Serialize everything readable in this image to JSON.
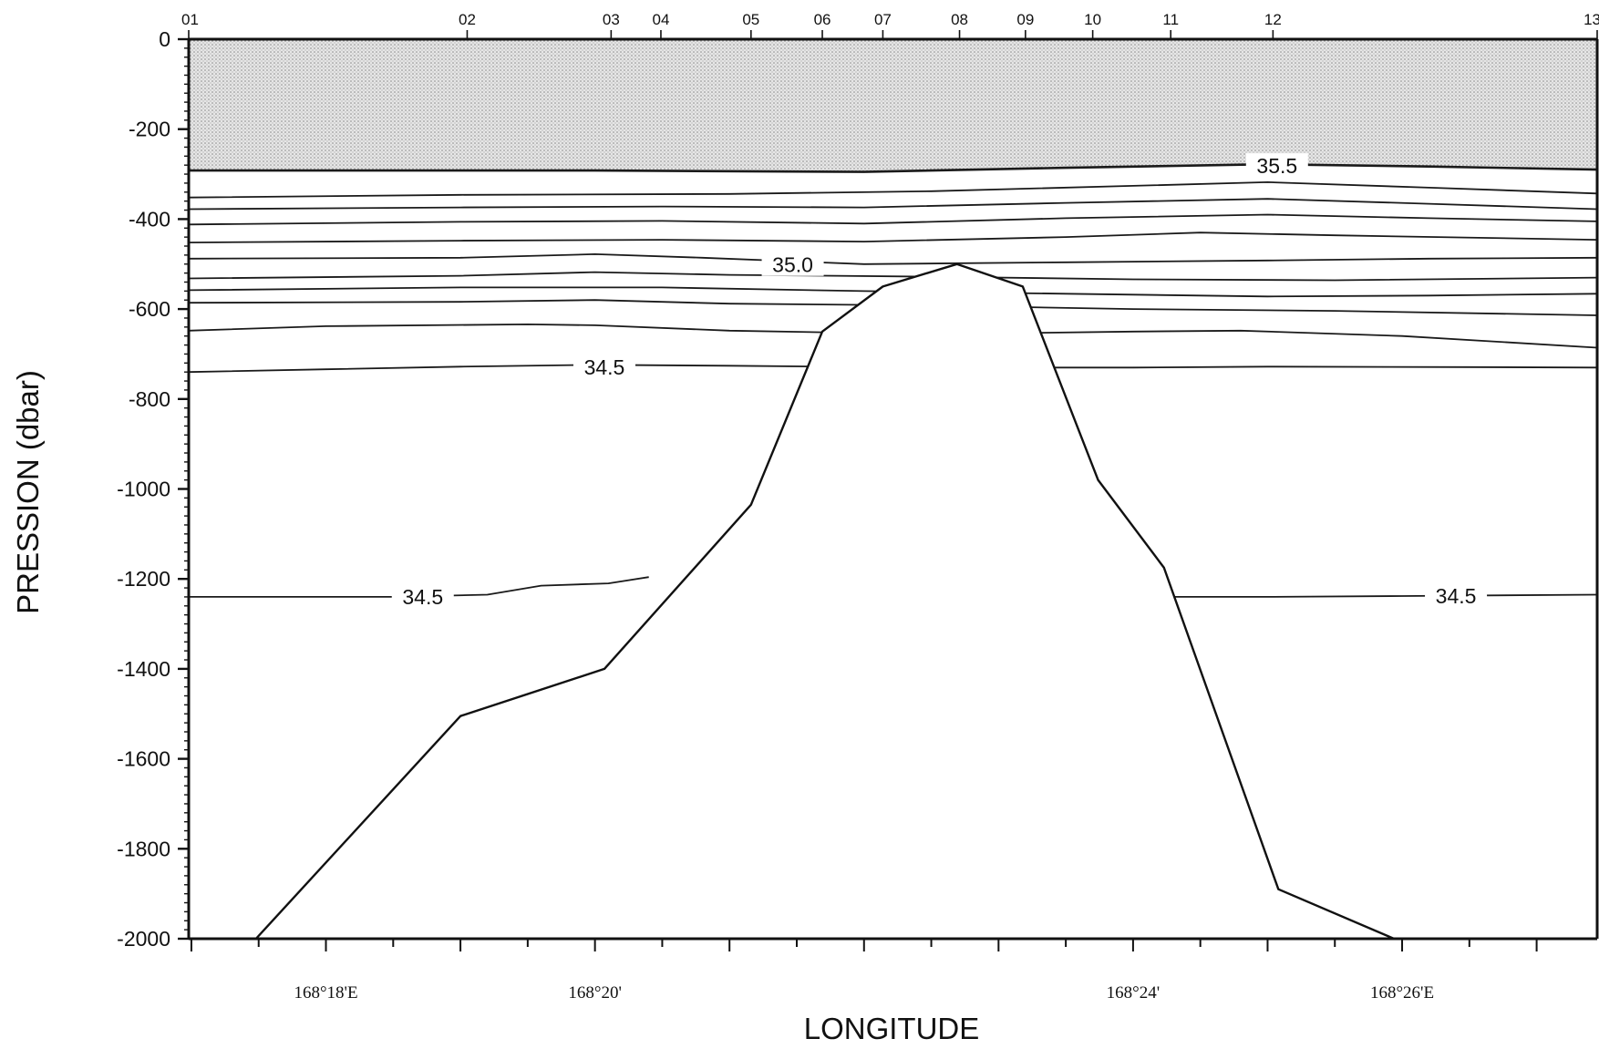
{
  "chart_data": {
    "type": "contour",
    "title": "",
    "xlabel": "LONGITUDE",
    "ylabel": "PRESSION (dbar)",
    "ylim": [
      -2000,
      0
    ],
    "y_ticks": [
      0,
      -200,
      -400,
      -600,
      -800,
      -1000,
      -1200,
      -1400,
      -1600,
      -1800,
      -2000
    ],
    "y_tick_labels": [
      "0",
      "-200",
      "-400",
      "-600",
      "-800",
      "-1000",
      "-1200",
      "-1400",
      "-1600",
      "-1800",
      "-2000"
    ],
    "x_unit": "arc-minutes east of 168°E",
    "xlim": [
      16.98,
      27.45
    ],
    "x_tick_labels": [
      {
        "x": 18,
        "label": "168°18'E"
      },
      {
        "x": 20,
        "label": "168°20'"
      },
      {
        "x": 24,
        "label": "168°24'"
      },
      {
        "x": 26,
        "label": "168°26'E"
      }
    ],
    "stations": [
      {
        "label": "01",
        "x": 16.98
      },
      {
        "label": "02",
        "x": 19.05
      },
      {
        "label": "03",
        "x": 20.12
      },
      {
        "label": "04",
        "x": 20.49
      },
      {
        "label": "05",
        "x": 21.16
      },
      {
        "label": "06",
        "x": 21.69
      },
      {
        "label": "07",
        "x": 22.14
      },
      {
        "label": "08",
        "x": 22.71
      },
      {
        "label": "09",
        "x": 23.2
      },
      {
        "label": "10",
        "x": 23.7
      },
      {
        "label": "11",
        "x": 24.28
      },
      {
        "label": "12",
        "x": 25.04
      },
      {
        "label": "13",
        "x": 27.45
      }
    ],
    "bottom_profile": [
      {
        "x": 17.48,
        "y": -2000
      },
      {
        "x": 19.0,
        "y": -1505
      },
      {
        "x": 20.07,
        "y": -1400
      },
      {
        "x": 21.16,
        "y": -1035
      },
      {
        "x": 21.69,
        "y": -650
      },
      {
        "x": 22.14,
        "y": -550
      },
      {
        "x": 22.69,
        "y": -500
      },
      {
        "x": 23.18,
        "y": -550
      },
      {
        "x": 23.74,
        "y": -980
      },
      {
        "x": 24.23,
        "y": -1175
      },
      {
        "x": 25.08,
        "y": -1890
      },
      {
        "x": 25.94,
        "y": -2000
      }
    ],
    "shaded_layer": {
      "description_level": "salinity above 35.5",
      "top": 0,
      "bottom_left": -292,
      "bottom_mid": -278,
      "bottom_right": -290
    },
    "contour_labels": [
      {
        "text": "35.5",
        "x": 25.07,
        "y": -282
      },
      {
        "text": "35.0",
        "x": 21.47,
        "y": -502
      },
      {
        "text": "34.5",
        "x": 20.07,
        "y": -729
      },
      {
        "text": "34.5",
        "x": 18.72,
        "y": -1240
      },
      {
        "text": "34.5",
        "x": 26.4,
        "y": -1238
      }
    ],
    "contour_levels": [
      {
        "value": 35.5,
        "points": [
          [
            16.98,
            -292
          ],
          [
            20.0,
            -292
          ],
          [
            22.0,
            -295
          ],
          [
            23.5,
            -286
          ],
          [
            25.0,
            -278
          ],
          [
            26.2,
            -283
          ],
          [
            27.45,
            -290
          ]
        ]
      },
      {
        "value": 35.4,
        "points": [
          [
            16.98,
            -352
          ],
          [
            19.0,
            -346
          ],
          [
            21.0,
            -344
          ],
          [
            22.5,
            -338
          ],
          [
            24.0,
            -326
          ],
          [
            25.0,
            -318
          ],
          [
            26.2,
            -330
          ],
          [
            27.45,
            -343
          ]
        ]
      },
      {
        "value": 35.3,
        "points": [
          [
            16.98,
            -378
          ],
          [
            19.0,
            -374
          ],
          [
            20.5,
            -372
          ],
          [
            22.0,
            -374
          ],
          [
            23.5,
            -364
          ],
          [
            25.0,
            -355
          ],
          [
            26.2,
            -366
          ],
          [
            27.45,
            -378
          ]
        ]
      },
      {
        "value": 35.2,
        "points": [
          [
            16.98,
            -412
          ],
          [
            19.0,
            -406
          ],
          [
            20.5,
            -404
          ],
          [
            22.0,
            -410
          ],
          [
            23.5,
            -398
          ],
          [
            25.0,
            -390
          ],
          [
            26.2,
            -398
          ],
          [
            27.45,
            -405
          ]
        ]
      },
      {
        "value": 35.1,
        "points": [
          [
            16.98,
            -452
          ],
          [
            19.0,
            -448
          ],
          [
            20.5,
            -446
          ],
          [
            22.0,
            -450
          ],
          [
            23.5,
            -440
          ],
          [
            24.5,
            -430
          ],
          [
            25.5,
            -436
          ],
          [
            27.45,
            -446
          ]
        ]
      },
      {
        "value": 35.0,
        "points": [
          [
            16.98,
            -488
          ],
          [
            19.0,
            -486
          ],
          [
            20.0,
            -478
          ],
          [
            20.8,
            -486
          ],
          [
            22.0,
            -500
          ],
          [
            23.5,
            -496
          ],
          [
            25.0,
            -492
          ],
          [
            26.2,
            -488
          ],
          [
            27.45,
            -486
          ]
        ]
      },
      {
        "value": 34.9,
        "points": [
          [
            16.98,
            -532
          ],
          [
            19.0,
            -526
          ],
          [
            20.0,
            -518
          ],
          [
            21.0,
            -524
          ],
          [
            22.5,
            -528
          ],
          [
            24.0,
            -534
          ],
          [
            25.5,
            -536
          ],
          [
            27.45,
            -530
          ]
        ]
      },
      {
        "value": 34.8,
        "points": [
          [
            16.98,
            -558
          ],
          [
            19.0,
            -552
          ],
          [
            20.5,
            -552
          ],
          [
            22.0,
            -560
          ],
          [
            23.5,
            -566
          ],
          [
            25.0,
            -572
          ],
          [
            26.2,
            -570
          ],
          [
            27.45,
            -566
          ]
        ]
      },
      {
        "value": 34.7,
        "points": [
          [
            16.98,
            -586
          ],
          [
            19.0,
            -584
          ],
          [
            20.0,
            -580
          ],
          [
            21.0,
            -588
          ],
          [
            22.5,
            -592
          ],
          [
            24.0,
            -600
          ],
          [
            25.5,
            -604
          ],
          [
            27.45,
            -614
          ]
        ]
      },
      {
        "value": 34.6,
        "points": [
          [
            16.98,
            -648
          ],
          [
            18.0,
            -638
          ],
          [
            19.5,
            -634
          ],
          [
            20.0,
            -636
          ],
          [
            21.0,
            -648
          ],
          [
            22.5,
            -656
          ],
          [
            24.0,
            -650
          ],
          [
            24.8,
            -648
          ],
          [
            26.0,
            -660
          ],
          [
            27.45,
            -686
          ]
        ]
      },
      {
        "value": 34.5,
        "points": [
          [
            16.98,
            -740
          ],
          [
            18.0,
            -734
          ],
          [
            19.0,
            -728
          ],
          [
            20.0,
            -724
          ],
          [
            21.0,
            -726
          ],
          [
            22.5,
            -730
          ],
          [
            24.0,
            -730
          ],
          [
            25.0,
            -728
          ],
          [
            26.5,
            -729
          ],
          [
            27.45,
            -730
          ]
        ]
      },
      {
        "value": 34.5,
        "points": [
          [
            16.98,
            -1240
          ],
          [
            18.5,
            -1240
          ],
          [
            19.2,
            -1235
          ],
          [
            19.6,
            -1215
          ],
          [
            20.1,
            -1210
          ],
          [
            20.4,
            -1196
          ]
        ]
      },
      {
        "value": 34.5,
        "points": [
          [
            24.28,
            -1240
          ],
          [
            25.0,
            -1240
          ],
          [
            26.0,
            -1238
          ],
          [
            27.45,
            -1235
          ]
        ]
      }
    ]
  }
}
